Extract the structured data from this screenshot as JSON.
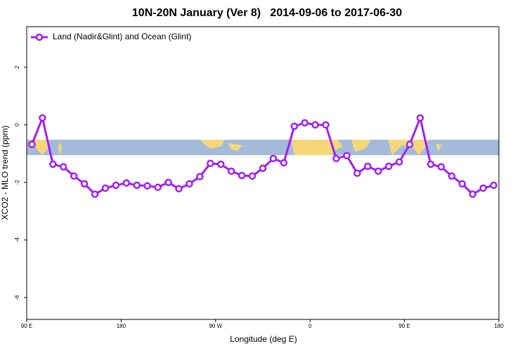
{
  "chart_data": {
    "type": "line",
    "title": "10N-20N January (Ver 8)   2014-09-06 to 2017-06-30",
    "x_label": "Longitude (deg E)",
    "y_label": "XCO2 - MLO trend (ppm)",
    "x": [
      95,
      105,
      115,
      125,
      135,
      145,
      155,
      165,
      175,
      185,
      195,
      205,
      215,
      225,
      235,
      245,
      255,
      265,
      275,
      285,
      295,
      305,
      315,
      325,
      335,
      345,
      355,
      365,
      375,
      385,
      395,
      405,
      415,
      425,
      435,
      445,
      455,
      465,
      475,
      485,
      495,
      505,
      515,
      525,
      535
    ],
    "series": [
      {
        "name": "Land (Nadir&Glint) and Ocean (Glint)",
        "color": "#a020f0",
        "values": [
          -0.68,
          0.24,
          -1.37,
          -1.46,
          -1.78,
          -2.05,
          -2.41,
          -2.2,
          -2.1,
          -2.02,
          -2.1,
          -2.12,
          -2.17,
          -2.0,
          -2.22,
          -2.05,
          -1.8,
          -1.34,
          -1.37,
          -1.61,
          -1.76,
          -1.78,
          -1.51,
          -1.17,
          -1.32,
          -0.05,
          0.07,
          0,
          0,
          -1.17,
          -1.07,
          -1.68,
          -1.44,
          -1.61,
          -1.44,
          -1.29,
          -0.68,
          0.24,
          -1.37,
          -1.46,
          -1.78,
          -2.05,
          -2.41,
          -2.2,
          -2.1
        ]
      }
    ],
    "xlim": [
      90,
      540
    ],
    "xticks": [
      {
        "value": 90,
        "label": "90 E"
      },
      180,
      {
        "value": 270,
        "label": "90 W"
      },
      {
        "value": 360,
        "label": "0"
      },
      {
        "value": 450,
        "label": "90 E"
      },
      {
        "value": 540,
        "label": "180"
      }
    ],
    "ylim": [
      3.41,
      -6.76
    ],
    "yticks": [
      2,
      0,
      -2,
      -4,
      -6
    ],
    "legend": "top-left"
  }
}
